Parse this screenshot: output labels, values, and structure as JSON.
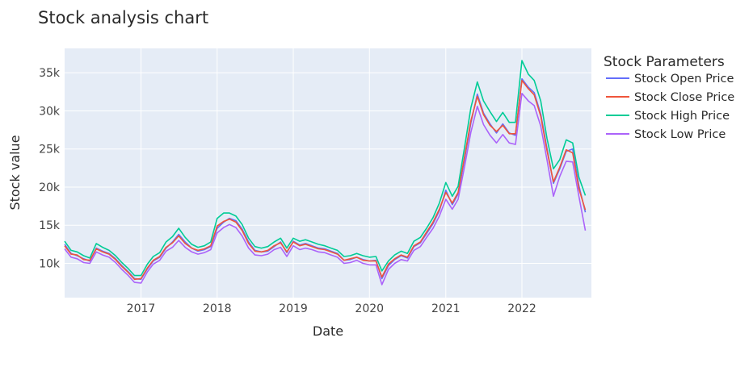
{
  "chart_data": {
    "type": "line",
    "title": "Stock analysis chart",
    "xlabel": "Date",
    "ylabel": "Stock value",
    "xlim": [
      "2016-01-01",
      "2022-11-30"
    ],
    "ylim": [
      5500,
      38200
    ],
    "grid": true,
    "background": "#E5ECF6",
    "x_ticks": [
      {
        "value": "2017-01-01",
        "label": "2017"
      },
      {
        "value": "2018-01-01",
        "label": "2018"
      },
      {
        "value": "2019-01-01",
        "label": "2019"
      },
      {
        "value": "2020-01-01",
        "label": "2020"
      },
      {
        "value": "2021-01-01",
        "label": "2021"
      },
      {
        "value": "2022-01-01",
        "label": "2022"
      }
    ],
    "y_ticks": [
      {
        "value": 10000,
        "label": "10k"
      },
      {
        "value": 15000,
        "label": "15k"
      },
      {
        "value": 20000,
        "label": "20k"
      },
      {
        "value": 25000,
        "label": "25k"
      },
      {
        "value": 30000,
        "label": "30k"
      },
      {
        "value": 35000,
        "label": "35k"
      }
    ],
    "legend": {
      "title": "Stock Parameters",
      "position": "right"
    },
    "x": [
      "2016-01-01",
      "2016-02-01",
      "2016-03-01",
      "2016-04-01",
      "2016-05-01",
      "2016-06-01",
      "2016-07-01",
      "2016-08-01",
      "2016-09-01",
      "2016-10-01",
      "2016-11-01",
      "2016-12-01",
      "2017-01-01",
      "2017-02-01",
      "2017-03-01",
      "2017-04-01",
      "2017-05-01",
      "2017-06-01",
      "2017-07-01",
      "2017-08-01",
      "2017-09-01",
      "2017-10-01",
      "2017-11-01",
      "2017-12-01",
      "2018-01-01",
      "2018-02-01",
      "2018-03-01",
      "2018-04-01",
      "2018-05-01",
      "2018-06-01",
      "2018-07-01",
      "2018-08-01",
      "2018-09-01",
      "2018-10-01",
      "2018-11-01",
      "2018-12-01",
      "2019-01-01",
      "2019-02-01",
      "2019-03-01",
      "2019-04-01",
      "2019-05-01",
      "2019-06-01",
      "2019-07-01",
      "2019-08-01",
      "2019-09-01",
      "2019-10-01",
      "2019-11-01",
      "2019-12-01",
      "2020-01-01",
      "2020-02-01",
      "2020-03-01",
      "2020-04-01",
      "2020-05-01",
      "2020-06-01",
      "2020-07-01",
      "2020-08-01",
      "2020-09-01",
      "2020-10-01",
      "2020-11-01",
      "2020-12-01",
      "2021-01-01",
      "2021-02-01",
      "2021-03-01",
      "2021-04-01",
      "2021-05-01",
      "2021-06-01",
      "2021-07-01",
      "2021-08-01",
      "2021-09-01",
      "2021-10-01",
      "2021-11-01",
      "2021-12-01",
      "2022-01-01",
      "2022-02-01",
      "2022-03-01",
      "2022-04-01",
      "2022-05-01",
      "2022-06-01",
      "2022-07-01",
      "2022-08-01",
      "2022-09-01",
      "2022-10-01",
      "2022-11-01"
    ],
    "series": [
      {
        "name": "Stock Open Price",
        "color": "#636EFA",
        "values": [
          12500,
          11300,
          11000,
          10600,
          10300,
          12000,
          11600,
          11300,
          10600,
          9700,
          8900,
          8000,
          7900,
          9300,
          10300,
          10800,
          12000,
          12800,
          13800,
          12800,
          12000,
          11600,
          11800,
          12200,
          14600,
          15400,
          15900,
          15600,
          14500,
          12800,
          11700,
          11500,
          11600,
          12200,
          12800,
          11400,
          12900,
          12400,
          12600,
          12300,
          12000,
          11900,
          11600,
          11300,
          10400,
          10500,
          10800,
          10500,
          10300,
          10400,
          8000,
          9700,
          10500,
          11000,
          10700,
          12200,
          12700,
          13900,
          15200,
          16900,
          19600,
          17700,
          19100,
          23700,
          28400,
          32200,
          29700,
          28300,
          27100,
          28300,
          27100,
          26800,
          34200,
          33100,
          32400,
          29600,
          25100,
          20500,
          22400,
          24700,
          25000,
          20200,
          16700
        ]
      },
      {
        "name": "Stock Close Price",
        "color": "#EF553B",
        "values": [
          12300,
          11200,
          11100,
          10500,
          10400,
          11900,
          11500,
          11200,
          10500,
          9600,
          8800,
          7900,
          8000,
          9400,
          10400,
          10900,
          12100,
          12700,
          13600,
          12600,
          12000,
          11700,
          11900,
          12300,
          14900,
          15500,
          15800,
          15400,
          14300,
          12600,
          11600,
          11500,
          11700,
          12300,
          12700,
          11500,
          12800,
          12300,
          12500,
          12200,
          11900,
          11800,
          11500,
          11200,
          10400,
          10600,
          10800,
          10400,
          10300,
          10300,
          8200,
          9900,
          10600,
          11100,
          10800,
          12300,
          12800,
          14100,
          15400,
          17100,
          19300,
          17900,
          19300,
          24000,
          28700,
          31900,
          29500,
          28100,
          27300,
          28100,
          27000,
          27000,
          34000,
          32900,
          32100,
          29300,
          24800,
          20700,
          22600,
          24900,
          24500,
          19800,
          17000
        ]
      },
      {
        "name": "Stock High Price",
        "color": "#00CC96",
        "values": [
          12900,
          11700,
          11500,
          11000,
          10700,
          12600,
          12100,
          11700,
          11000,
          10100,
          9300,
          8400,
          8400,
          9900,
          10900,
          11400,
          12800,
          13500,
          14600,
          13400,
          12500,
          12100,
          12300,
          12800,
          15900,
          16600,
          16600,
          16200,
          15100,
          13300,
          12200,
          12000,
          12200,
          12800,
          13300,
          12000,
          13300,
          12900,
          13100,
          12800,
          12500,
          12300,
          12000,
          11700,
          10900,
          11000,
          11300,
          11000,
          10800,
          10900,
          9000,
          10300,
          11100,
          11600,
          11300,
          12900,
          13400,
          14600,
          16000,
          17900,
          20600,
          18800,
          20100,
          25200,
          30400,
          33800,
          31300,
          29900,
          28600,
          29800,
          28500,
          28500,
          36600,
          34800,
          34000,
          31300,
          26400,
          22400,
          23600,
          26200,
          25800,
          21300,
          18900
        ]
      },
      {
        "name": "Stock Low Price",
        "color": "#AB63FA",
        "values": [
          11900,
          10800,
          10600,
          10100,
          10000,
          11500,
          11100,
          10800,
          10100,
          9200,
          8400,
          7500,
          7400,
          8900,
          9900,
          10400,
          11600,
          12100,
          13000,
          12100,
          11500,
          11200,
          11400,
          11800,
          14000,
          14700,
          15100,
          14700,
          13600,
          12000,
          11100,
          11000,
          11200,
          11800,
          12100,
          10900,
          12300,
          11800,
          12000,
          11800,
          11500,
          11400,
          11100,
          10800,
          10000,
          10100,
          10400,
          10000,
          9800,
          9800,
          7200,
          9200,
          10000,
          10500,
          10300,
          11700,
          12200,
          13400,
          14600,
          16200,
          18400,
          17100,
          18400,
          22700,
          27200,
          30600,
          28200,
          26800,
          25800,
          26900,
          25800,
          25600,
          32300,
          31300,
          30700,
          28000,
          23600,
          18800,
          21400,
          23400,
          23300,
          18800,
          14300
        ]
      }
    ]
  }
}
